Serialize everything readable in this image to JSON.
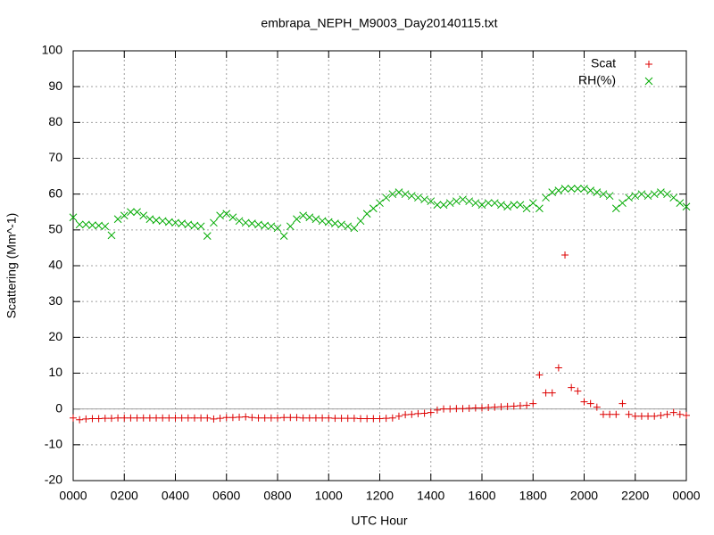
{
  "chart_data": {
    "type": "scatter",
    "title": "embrapa_NEPH_M9003_Day20140115.txt",
    "x_label": "UTC Hour",
    "y_label": "Scattering (Mm^-1)",
    "xlim": [
      0,
      24
    ],
    "xticks": [
      {
        "value": 0,
        "label": "0000"
      },
      {
        "value": 2,
        "label": "0200"
      },
      {
        "value": 4,
        "label": "0400"
      },
      {
        "value": 6,
        "label": "0600"
      },
      {
        "value": 8,
        "label": "0800"
      },
      {
        "value": 10,
        "label": "1000"
      },
      {
        "value": 12,
        "label": "1200"
      },
      {
        "value": 14,
        "label": "1400"
      },
      {
        "value": 16,
        "label": "1600"
      },
      {
        "value": 18,
        "label": "1800"
      },
      {
        "value": 20,
        "label": "2000"
      },
      {
        "value": 22,
        "label": "2200"
      },
      {
        "value": 24,
        "label": "0000"
      }
    ],
    "ylim": [
      -20,
      100
    ],
    "yticks": [
      -20,
      -10,
      0,
      10,
      20,
      30,
      40,
      50,
      60,
      70,
      80,
      90,
      100
    ],
    "grid": true,
    "legend": "top-right",
    "x": [
      0,
      0.25,
      0.5,
      0.75,
      1,
      1.25,
      1.5,
      1.75,
      2,
      2.25,
      2.5,
      2.75,
      3,
      3.25,
      3.5,
      3.75,
      4,
      4.25,
      4.5,
      4.75,
      5,
      5.25,
      5.5,
      5.75,
      6,
      6.25,
      6.5,
      6.75,
      7,
      7.25,
      7.5,
      7.75,
      8,
      8.25,
      8.5,
      8.75,
      9,
      9.25,
      9.5,
      9.75,
      10,
      10.25,
      10.5,
      10.75,
      11,
      11.25,
      11.5,
      11.75,
      12,
      12.25,
      12.5,
      12.75,
      13,
      13.25,
      13.5,
      13.75,
      14,
      14.25,
      14.5,
      14.75,
      15,
      15.25,
      15.5,
      15.75,
      16,
      16.25,
      16.5,
      16.75,
      17,
      17.25,
      17.5,
      17.75,
      18,
      18.25,
      18.5,
      18.75,
      19,
      19.25,
      19.5,
      19.75,
      20,
      20.25,
      20.5,
      20.75,
      21,
      21.25,
      21.5,
      21.75,
      22,
      22.25,
      22.5,
      22.75,
      23,
      23.25,
      23.5,
      23.75,
      24
    ],
    "series": [
      {
        "name": "Scat",
        "color": "#dd0000",
        "marker": "plus",
        "values": [
          -2.5,
          -3,
          -2.8,
          -2.7,
          -2.7,
          -2.6,
          -2.6,
          -2.5,
          -2.5,
          -2.5,
          -2.5,
          -2.5,
          -2.5,
          -2.5,
          -2.5,
          -2.5,
          -2.5,
          -2.5,
          -2.5,
          -2.5,
          -2.5,
          -2.5,
          -2.8,
          -2.6,
          -2.4,
          -2.4,
          -2.3,
          -2.2,
          -2.4,
          -2.5,
          -2.5,
          -2.5,
          -2.5,
          -2.4,
          -2.4,
          -2.4,
          -2.5,
          -2.5,
          -2.5,
          -2.5,
          -2.5,
          -2.6,
          -2.6,
          -2.6,
          -2.6,
          -2.7,
          -2.7,
          -2.7,
          -2.7,
          -2.6,
          -2.5,
          -2,
          -1.6,
          -1.5,
          -1.3,
          -1.2,
          -1,
          -0.3,
          0,
          0,
          0.1,
          0.1,
          0.2,
          0.3,
          0.3,
          0.4,
          0.5,
          0.6,
          0.7,
          0.8,
          0.9,
          1,
          1.5,
          9.5,
          4.5,
          4.5,
          11.5,
          43,
          6,
          5,
          2,
          1.5,
          0.5,
          -1.5,
          -1.5,
          -1.5,
          1.5,
          -1.5,
          -2,
          -2,
          -2,
          -2,
          -1.8,
          -1.5,
          -1,
          -1.5,
          -1.8
        ]
      },
      {
        "name": "RH(%)",
        "color": "#00aa00",
        "marker": "cross",
        "values": [
          53.5,
          51.5,
          51.5,
          51.3,
          51.2,
          51,
          48.5,
          53,
          54,
          55,
          55,
          54,
          53,
          52.7,
          52.5,
          52.2,
          52,
          51.8,
          51.5,
          51.2,
          51,
          48.3,
          52,
          54,
          54.5,
          53.5,
          52.5,
          52,
          51.8,
          51.5,
          51.2,
          51,
          50.5,
          48.3,
          51,
          53,
          54,
          53.5,
          53,
          52.5,
          52.2,
          51.8,
          51.5,
          51,
          50.5,
          52.5,
          54.5,
          56,
          57.5,
          59,
          60,
          60.5,
          60,
          59.5,
          59,
          58.5,
          58,
          57,
          57,
          57.5,
          58,
          58.5,
          58,
          57.5,
          57,
          57.5,
          57.5,
          57,
          56.5,
          57,
          57,
          56,
          57.5,
          56,
          59,
          60.5,
          61,
          61.5,
          61.5,
          61.5,
          61.5,
          61,
          60.5,
          60,
          59.5,
          56,
          57.5,
          59,
          59.5,
          60,
          59.5,
          60,
          60.5,
          60,
          59,
          57.5,
          56.5
        ]
      }
    ]
  }
}
